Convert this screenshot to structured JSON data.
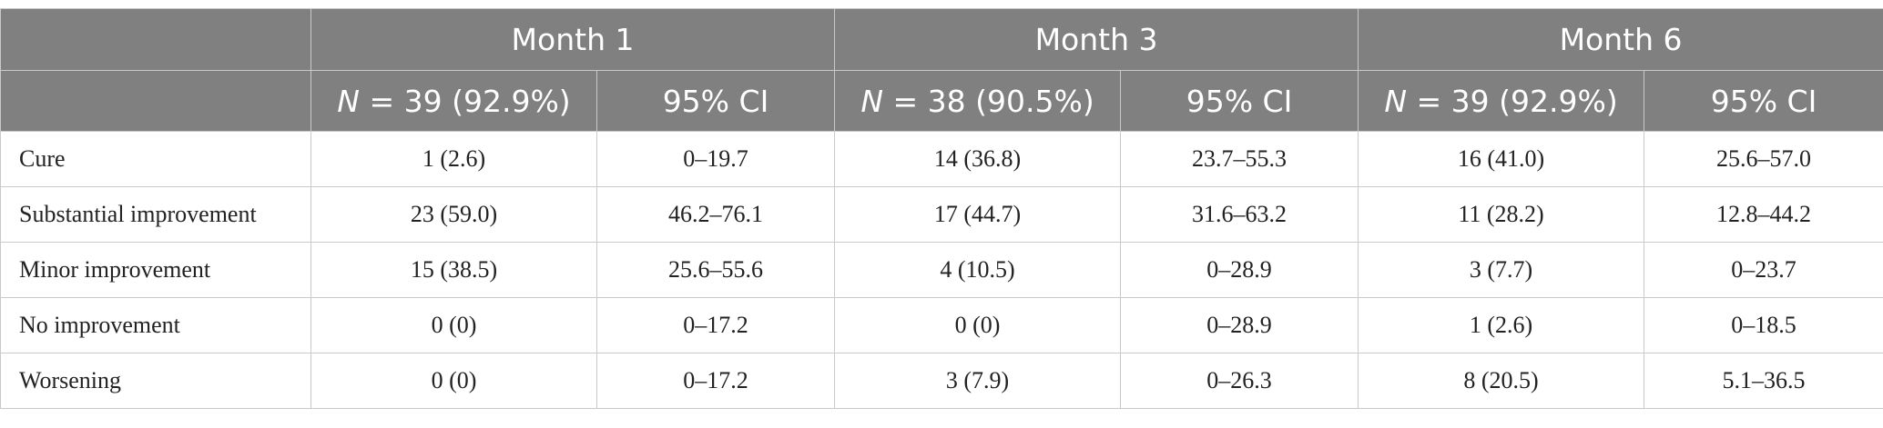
{
  "header": {
    "months": [
      "Month 1",
      "Month 3",
      "Month 6"
    ],
    "n_prefix": "N",
    "n_values": [
      " = 39 (92.9%)",
      " = 38 (90.5%)",
      " = 39 (92.9%)"
    ],
    "ci_label": "95% CI"
  },
  "rows": [
    {
      "label": "Cure",
      "values": [
        "1 (2.6)",
        "0–19.7",
        "14 (36.8)",
        "23.7–55.3",
        "16 (41.0)",
        "25.6–57.0"
      ]
    },
    {
      "label": "Substantial improvement",
      "values": [
        "23 (59.0)",
        "46.2–76.1",
        "17 (44.7)",
        "31.6–63.2",
        "11 (28.2)",
        "12.8–44.2"
      ]
    },
    {
      "label": "Minor improvement",
      "values": [
        "15 (38.5)",
        "25.6–55.6",
        "4 (10.5)",
        "0–28.9",
        "3 (7.7)",
        "0–23.7"
      ]
    },
    {
      "label": "No improvement",
      "values": [
        "0 (0)",
        "0–17.2",
        "0 (0)",
        "0–28.9",
        "1 (2.6)",
        "0–18.5"
      ]
    },
    {
      "label": "Worsening",
      "values": [
        "0 (0)",
        "0–17.2",
        "3 (7.9)",
        "0–26.3",
        "8 (20.5)",
        "5.1–36.5"
      ]
    }
  ]
}
